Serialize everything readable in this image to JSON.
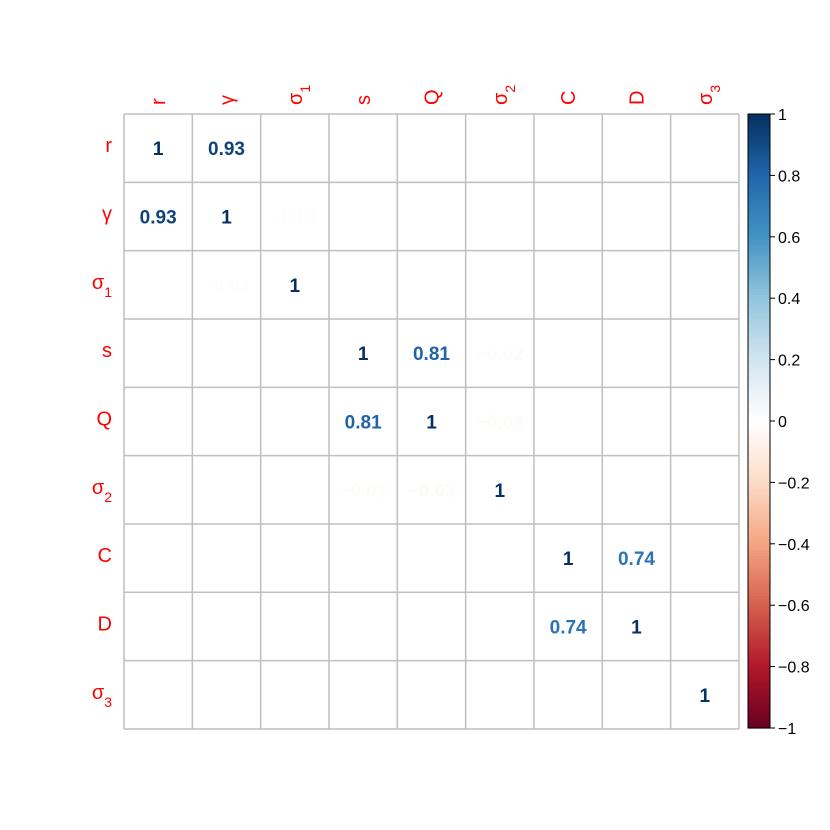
{
  "chart_data": {
    "type": "heatmap",
    "variables": [
      {
        "name": "r",
        "base": "r",
        "sub": ""
      },
      {
        "name": "γ",
        "base": "γ",
        "sub": ""
      },
      {
        "name": "σ1",
        "base": "σ",
        "sub": "1"
      },
      {
        "name": "s",
        "base": "s",
        "sub": ""
      },
      {
        "name": "Q",
        "base": "Q",
        "sub": ""
      },
      {
        "name": "σ2",
        "base": "σ",
        "sub": "2"
      },
      {
        "name": "C",
        "base": "C",
        "sub": ""
      },
      {
        "name": "D",
        "base": "D",
        "sub": ""
      },
      {
        "name": "σ3",
        "base": "σ",
        "sub": "3"
      }
    ],
    "matrix": [
      [
        1,
        0.93,
        0,
        0,
        0,
        0,
        0,
        0,
        0
      ],
      [
        0.93,
        1,
        -0.01,
        0,
        0,
        0,
        0,
        0,
        0
      ],
      [
        0,
        -0.01,
        1,
        0,
        0,
        0,
        0,
        0,
        0
      ],
      [
        0,
        0,
        0,
        1,
        0.81,
        -0.02,
        0,
        0,
        0
      ],
      [
        0,
        0,
        0,
        0.81,
        1,
        -0.03,
        0,
        0,
        0
      ],
      [
        0,
        0,
        0,
        -0.02,
        -0.03,
        1,
        0,
        0,
        0
      ],
      [
        0,
        0,
        0,
        0,
        0,
        0,
        1,
        0.74,
        0
      ],
      [
        0,
        0,
        0,
        0,
        0,
        0,
        0.74,
        1,
        0
      ],
      [
        0,
        0,
        0,
        0,
        0,
        0,
        0,
        0,
        1
      ]
    ],
    "value_labels": [
      [
        "1",
        "0.93",
        "",
        "",
        "",
        "",
        "",
        "",
        ""
      ],
      [
        "0.93",
        "1",
        "−0.01",
        "",
        "",
        "",
        "",
        "",
        ""
      ],
      [
        "",
        "−0.01",
        "1",
        "",
        "",
        "",
        "",
        "",
        ""
      ],
      [
        "",
        "",
        "",
        "1",
        "0.81",
        "−0.02",
        "",
        "",
        ""
      ],
      [
        "",
        "",
        "",
        "0.81",
        "1",
        "−0.03",
        "",
        "",
        ""
      ],
      [
        "",
        "",
        "",
        "−0.02",
        "−0.03",
        "1",
        "",
        "",
        ""
      ],
      [
        "",
        "",
        "",
        "",
        "",
        "",
        "1",
        "0.74",
        ""
      ],
      [
        "",
        "",
        "",
        "",
        "",
        "",
        "0.74",
        "1",
        ""
      ],
      [
        "",
        "",
        "",
        "",
        "",
        "",
        "",
        "",
        "1"
      ]
    ],
    "colorbar": {
      "range": [
        -1,
        1
      ],
      "ticks": [
        1,
        0.8,
        0.6,
        0.4,
        0.2,
        0,
        -0.2,
        -0.4,
        -0.6,
        -0.8,
        -1
      ],
      "tick_labels": [
        "1",
        "0.8",
        "0.6",
        "0.4",
        "0.2",
        "0",
        "−0.2",
        "−0.4",
        "−0.6",
        "−0.8",
        "−1"
      ],
      "placement": "right"
    },
    "colors": {
      "label": "#ff0000",
      "grid": "#bfbfbf",
      "ramp": [
        "#67001f",
        "#b2182b",
        "#d6604d",
        "#f4a582",
        "#fddbc7",
        "#ffffff",
        "#d1e5f0",
        "#92c5de",
        "#4393c3",
        "#2166ac",
        "#053061"
      ]
    }
  }
}
